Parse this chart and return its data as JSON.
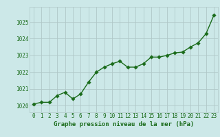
{
  "x": [
    0,
    1,
    2,
    3,
    4,
    5,
    6,
    7,
    8,
    9,
    10,
    11,
    12,
    13,
    14,
    15,
    16,
    17,
    18,
    19,
    20,
    21,
    22,
    23
  ],
  "y": [
    1020.1,
    1020.2,
    1020.2,
    1020.6,
    1020.8,
    1020.4,
    1020.7,
    1021.4,
    1022.0,
    1022.3,
    1022.5,
    1022.65,
    1022.3,
    1022.3,
    1022.5,
    1022.9,
    1022.9,
    1023.0,
    1023.15,
    1023.2,
    1023.5,
    1023.75,
    1024.3,
    1025.4
  ],
  "line_color": "#1a6b1a",
  "marker_color": "#1a6b1a",
  "bg_color": "#cce8e8",
  "grid_color": "#b0c8c8",
  "xlabel": "Graphe pression niveau de la mer (hPa)",
  "ylim": [
    1019.6,
    1025.9
  ],
  "yticks": [
    1020,
    1021,
    1022,
    1023,
    1024,
    1025
  ],
  "xticks": [
    0,
    1,
    2,
    3,
    4,
    5,
    6,
    7,
    8,
    9,
    10,
    11,
    12,
    13,
    14,
    15,
    16,
    17,
    18,
    19,
    20,
    21,
    22,
    23
  ],
  "xlabel_color": "#1a6b1a",
  "tick_color": "#1a6b1a",
  "line_width": 1.0,
  "marker_size": 2.8,
  "xlabel_fontsize": 6.5,
  "tick_fontsize": 5.5
}
